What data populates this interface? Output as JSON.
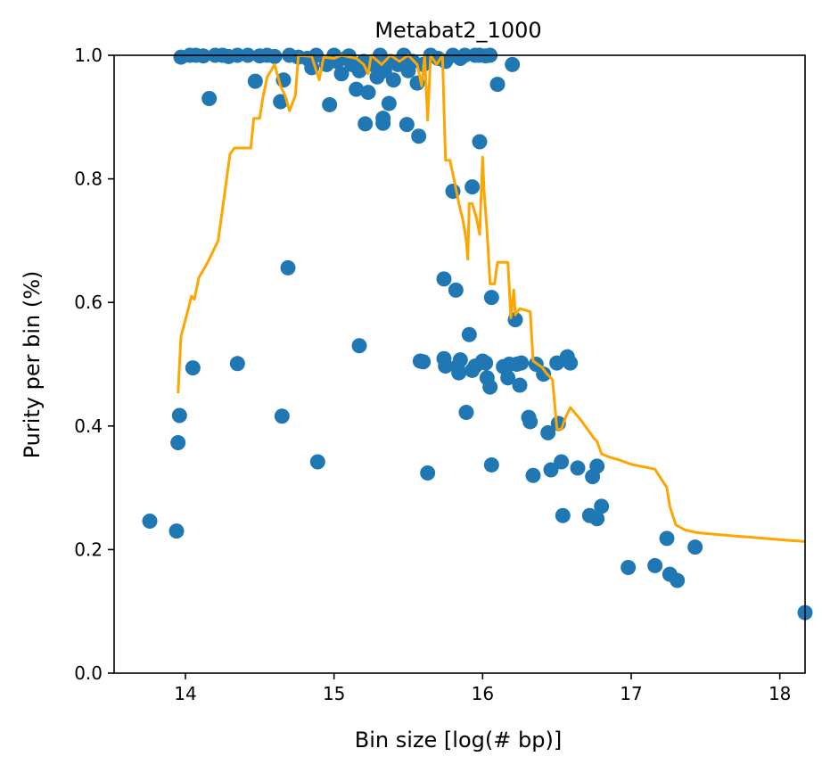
{
  "chart_data": {
    "type": "scatter",
    "title": "Metabat2_1000",
    "xlabel": "Bin size [log(# bp)]",
    "ylabel": "Purity per bin (%)",
    "xlim": [
      13.52,
      18.17
    ],
    "ylim": [
      0.0,
      1.0
    ],
    "xticks": [
      14,
      15,
      16,
      17,
      18
    ],
    "yticks": [
      0.0,
      0.2,
      0.4,
      0.6,
      0.8,
      1.0
    ],
    "xtick_labels": [
      "14",
      "15",
      "16",
      "17",
      "18"
    ],
    "ytick_labels": [
      "0.0",
      "0.2",
      "0.4",
      "0.6",
      "0.8",
      "1.0"
    ],
    "grid": false,
    "legend": "none",
    "series": [
      {
        "kind": "scatter",
        "color": "#1f77b4",
        "points": [
          [
            13.76,
            0.246
          ],
          [
            13.94,
            0.23
          ],
          [
            13.95,
            0.373
          ],
          [
            13.96,
            0.417
          ],
          [
            14.05,
            0.494
          ],
          [
            14.16,
            0.93
          ],
          [
            14.35,
            0.501
          ],
          [
            14.47,
            0.958
          ],
          [
            14.64,
            0.925
          ],
          [
            14.65,
            0.416
          ],
          [
            14.66,
            0.96
          ],
          [
            14.69,
            0.656
          ],
          [
            14.89,
            0.342
          ],
          [
            14.97,
            0.92
          ],
          [
            15.17,
            0.53
          ],
          [
            15.21,
            0.889
          ],
          [
            15.33,
            0.89
          ],
          [
            15.33,
            0.898
          ],
          [
            15.37,
            0.922
          ],
          [
            15.49,
            0.888
          ],
          [
            15.57,
            0.869
          ],
          [
            15.58,
            0.505
          ],
          [
            15.6,
            0.504
          ],
          [
            15.63,
            0.324
          ],
          [
            15.74,
            0.638
          ],
          [
            15.74,
            0.509
          ],
          [
            15.75,
            0.497
          ],
          [
            15.8,
            0.78
          ],
          [
            15.82,
            0.62
          ],
          [
            15.83,
            0.496
          ],
          [
            15.84,
            0.486
          ],
          [
            15.85,
            0.507
          ],
          [
            15.89,
            0.422
          ],
          [
            15.91,
            0.548
          ],
          [
            15.93,
            0.787
          ],
          [
            15.93,
            0.49
          ],
          [
            15.95,
            0.497
          ],
          [
            15.98,
            0.86
          ],
          [
            16.0,
            0.505
          ],
          [
            16.02,
            0.502
          ],
          [
            16.03,
            0.478
          ],
          [
            16.05,
            0.463
          ],
          [
            16.06,
            0.608
          ],
          [
            16.06,
            0.337
          ],
          [
            16.1,
            0.953
          ],
          [
            16.14,
            0.496
          ],
          [
            16.17,
            0.478
          ],
          [
            16.18,
            0.5
          ],
          [
            16.2,
            0.985
          ],
          [
            16.22,
            0.572
          ],
          [
            16.23,
            0.5
          ],
          [
            16.25,
            0.466
          ],
          [
            16.26,
            0.502
          ],
          [
            16.31,
            0.414
          ],
          [
            16.32,
            0.407
          ],
          [
            16.34,
            0.32
          ],
          [
            16.36,
            0.5
          ],
          [
            16.41,
            0.484
          ],
          [
            16.44,
            0.389
          ],
          [
            16.46,
            0.329
          ],
          [
            16.5,
            0.502
          ],
          [
            16.51,
            0.404
          ],
          [
            16.53,
            0.342
          ],
          [
            16.54,
            0.255
          ],
          [
            16.57,
            0.512
          ],
          [
            16.59,
            0.502
          ],
          [
            16.64,
            0.332
          ],
          [
            16.72,
            0.255
          ],
          [
            16.74,
            0.318
          ],
          [
            16.77,
            0.335
          ],
          [
            16.77,
            0.25
          ],
          [
            16.8,
            0.27
          ],
          [
            16.98,
            0.171
          ],
          [
            17.16,
            0.174
          ],
          [
            17.24,
            0.218
          ],
          [
            17.26,
            0.16
          ],
          [
            17.31,
            0.15
          ],
          [
            17.43,
            0.204
          ],
          [
            18.17,
            0.098
          ],
          [
            14.07,
            1.0
          ],
          [
            14.12,
            0.999
          ],
          [
            14.2,
            1.0
          ],
          [
            14.25,
            1.0
          ],
          [
            14.29,
            0.998
          ],
          [
            14.35,
            1.0
          ],
          [
            14.42,
            1.0
          ],
          [
            14.5,
            0.999
          ],
          [
            14.55,
            1.0
          ],
          [
            14.6,
            0.998
          ],
          [
            14.7,
            1.0
          ],
          [
            14.76,
            0.997
          ],
          [
            14.82,
            0.995
          ],
          [
            14.88,
            1.0
          ],
          [
            14.95,
            0.985
          ],
          [
            15.0,
            1.0
          ],
          [
            15.02,
            0.99
          ],
          [
            15.05,
            0.97
          ],
          [
            15.08,
            0.995
          ],
          [
            15.12,
            0.985
          ],
          [
            15.15,
            0.945
          ],
          [
            15.17,
            0.975
          ],
          [
            15.2,
            0.99
          ],
          [
            15.23,
            0.94
          ],
          [
            15.26,
            0.985
          ],
          [
            15.29,
            0.965
          ],
          [
            15.31,
            1.0
          ],
          [
            15.34,
            0.975
          ],
          [
            15.38,
            0.99
          ],
          [
            15.4,
            0.96
          ],
          [
            15.43,
            0.985
          ],
          [
            15.47,
            1.0
          ],
          [
            15.5,
            0.975
          ],
          [
            15.53,
            0.99
          ],
          [
            15.56,
            0.955
          ],
          [
            15.6,
            0.985
          ],
          [
            15.65,
            1.0
          ],
          [
            15.7,
            0.995
          ],
          [
            15.75,
            0.99
          ],
          [
            15.8,
            1.0
          ],
          [
            15.85,
            0.995
          ],
          [
            15.88,
            1.0
          ],
          [
            15.95,
            1.0
          ],
          [
            15.98,
            1.0
          ],
          [
            16.02,
            0.999
          ],
          [
            16.05,
            1.0
          ],
          [
            13.97,
            0.997
          ],
          [
            14.03,
            1.0
          ],
          [
            14.85,
            0.98
          ],
          [
            15.1,
            0.999
          ]
        ]
      },
      {
        "kind": "line",
        "color": "#ffa500",
        "points": [
          [
            13.95,
            0.453
          ],
          [
            13.97,
            0.545
          ],
          [
            14.02,
            0.59
          ],
          [
            14.04,
            0.61
          ],
          [
            14.06,
            0.605
          ],
          [
            14.09,
            0.64
          ],
          [
            14.15,
            0.665
          ],
          [
            14.22,
            0.7
          ],
          [
            14.3,
            0.84
          ],
          [
            14.33,
            0.85
          ],
          [
            14.44,
            0.85
          ],
          [
            14.46,
            0.898
          ],
          [
            14.5,
            0.898
          ],
          [
            14.52,
            0.93
          ],
          [
            14.55,
            0.965
          ],
          [
            14.6,
            0.985
          ],
          [
            14.64,
            0.95
          ],
          [
            14.67,
            0.935
          ],
          [
            14.7,
            0.91
          ],
          [
            14.74,
            0.935
          ],
          [
            14.76,
            1.0
          ],
          [
            14.85,
            0.998
          ],
          [
            14.9,
            0.96
          ],
          [
            14.93,
            0.997
          ],
          [
            15.0,
            0.995
          ],
          [
            15.05,
            1.0
          ],
          [
            15.15,
            0.995
          ],
          [
            15.2,
            0.985
          ],
          [
            15.23,
            0.97
          ],
          [
            15.25,
            1.0
          ],
          [
            15.32,
            0.985
          ],
          [
            15.38,
            1.0
          ],
          [
            15.44,
            0.99
          ],
          [
            15.5,
            1.0
          ],
          [
            15.56,
            0.985
          ],
          [
            15.59,
            0.95
          ],
          [
            15.61,
            1.0
          ],
          [
            15.63,
            0.895
          ],
          [
            15.65,
            1.0
          ],
          [
            15.69,
            0.985
          ],
          [
            15.73,
            1.0
          ],
          [
            15.75,
            0.83
          ],
          [
            15.78,
            0.83
          ],
          [
            15.82,
            0.785
          ],
          [
            15.84,
            0.76
          ],
          [
            15.87,
            0.73
          ],
          [
            15.89,
            0.7
          ],
          [
            15.9,
            0.67
          ],
          [
            15.91,
            0.76
          ],
          [
            15.93,
            0.76
          ],
          [
            15.96,
            0.735
          ],
          [
            15.98,
            0.71
          ],
          [
            16.0,
            0.835
          ],
          [
            16.01,
            0.78
          ],
          [
            16.03,
            0.715
          ],
          [
            16.05,
            0.63
          ],
          [
            16.08,
            0.63
          ],
          [
            16.1,
            0.665
          ],
          [
            16.17,
            0.665
          ],
          [
            16.19,
            0.575
          ],
          [
            16.21,
            0.62
          ],
          [
            16.22,
            0.58
          ],
          [
            16.25,
            0.59
          ],
          [
            16.32,
            0.585
          ],
          [
            16.34,
            0.505
          ],
          [
            16.4,
            0.495
          ],
          [
            16.43,
            0.485
          ],
          [
            16.47,
            0.475
          ],
          [
            16.5,
            0.395
          ],
          [
            16.53,
            0.395
          ],
          [
            16.56,
            0.415
          ],
          [
            16.59,
            0.43
          ],
          [
            16.66,
            0.41
          ],
          [
            16.72,
            0.39
          ],
          [
            16.75,
            0.38
          ],
          [
            16.77,
            0.375
          ],
          [
            16.8,
            0.355
          ],
          [
            16.85,
            0.35
          ],
          [
            16.92,
            0.345
          ],
          [
            17.0,
            0.338
          ],
          [
            17.1,
            0.333
          ],
          [
            17.16,
            0.33
          ],
          [
            17.24,
            0.3
          ],
          [
            17.26,
            0.27
          ],
          [
            17.3,
            0.24
          ],
          [
            17.36,
            0.232
          ],
          [
            17.43,
            0.228
          ],
          [
            17.5,
            0.226
          ],
          [
            17.6,
            0.224
          ],
          [
            17.7,
            0.222
          ],
          [
            17.8,
            0.22
          ],
          [
            17.9,
            0.218
          ],
          [
            18.0,
            0.216
          ],
          [
            18.17,
            0.213
          ]
        ]
      }
    ]
  }
}
